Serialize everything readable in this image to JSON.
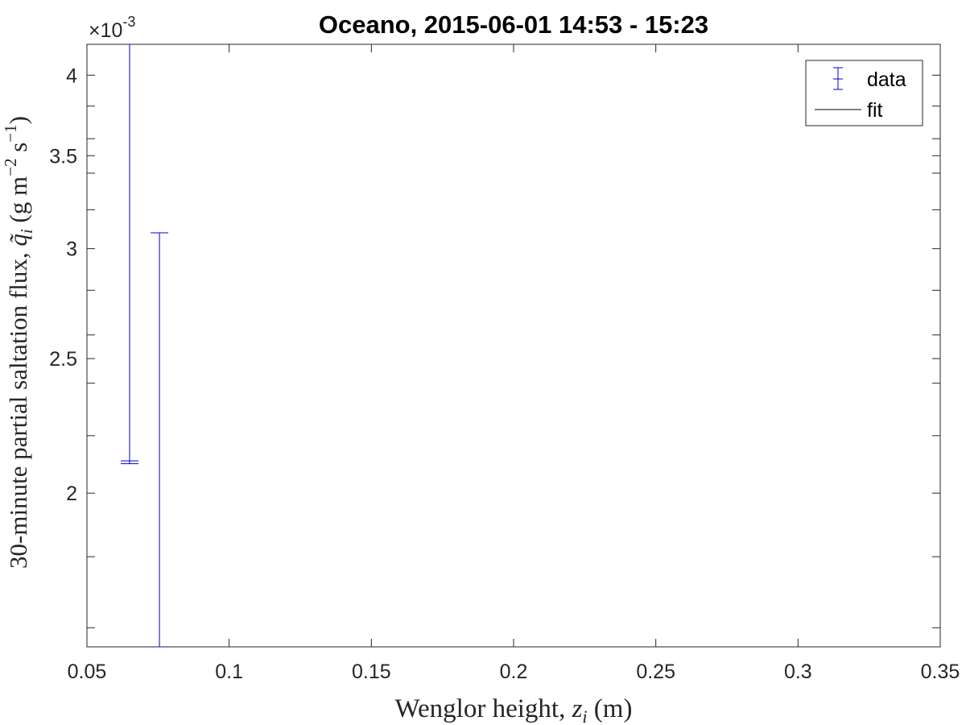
{
  "chart_data": {
    "type": "scatter",
    "title": "Oceano, 2015-06-01 14:53 - 15:23",
    "xlabel": {
      "prefix": "Wenglor height, ",
      "var": "z",
      "sub": "i",
      "suffix": " (m)"
    },
    "ylabel": {
      "prefix": "30-minute partial saltation flux, ",
      "var": "q̃",
      "sub": "i",
      "units_open": " (g m",
      "exp1": "−2",
      "units_mid": " s",
      "exp2": "−1",
      "units_close": ")"
    },
    "y_multiplier": {
      "base": "×10",
      "exp": "-3"
    },
    "xlim": [
      0.05,
      0.35
    ],
    "ylim": [
      0.00155,
      0.00421
    ],
    "y_scale": "log",
    "grid": false,
    "x_ticks": [
      {
        "v": 0.05,
        "label": "0.05"
      },
      {
        "v": 0.1,
        "label": "0.1"
      },
      {
        "v": 0.15,
        "label": "0.15"
      },
      {
        "v": 0.2,
        "label": "0.2"
      },
      {
        "v": 0.25,
        "label": "0.25"
      },
      {
        "v": 0.3,
        "label": "0.3"
      },
      {
        "v": 0.35,
        "label": "0.35"
      }
    ],
    "y_ticks": [
      {
        "v": 0.0016,
        "label": ""
      },
      {
        "v": 0.0018,
        "label": ""
      },
      {
        "v": 0.002,
        "label": "2"
      },
      {
        "v": 0.0022,
        "label": ""
      },
      {
        "v": 0.0024,
        "label": ""
      },
      {
        "v": 0.0025,
        "label": "2.5"
      },
      {
        "v": 0.0026,
        "label": ""
      },
      {
        "v": 0.0028,
        "label": ""
      },
      {
        "v": 0.003,
        "label": "3"
      },
      {
        "v": 0.0032,
        "label": ""
      },
      {
        "v": 0.0034,
        "label": ""
      },
      {
        "v": 0.0035,
        "label": "3.5"
      },
      {
        "v": 0.0036,
        "label": ""
      },
      {
        "v": 0.0038,
        "label": ""
      },
      {
        "v": 0.004,
        "label": "4"
      }
    ],
    "series": [
      {
        "name": "data",
        "color": "#0000cc",
        "points": [
          {
            "x": 0.065,
            "y": 0.00211,
            "lower": 0.0021,
            "upper": 0.0045
          },
          {
            "x": 0.0755,
            "y": 0.00155,
            "lower": 0.00155,
            "upper": 0.00308
          }
        ]
      },
      {
        "name": "fit",
        "color": "#000000",
        "points": []
      }
    ],
    "legend": {
      "position": "top-right",
      "entries": [
        {
          "label": "data",
          "kind": "errorbar",
          "color": "#0000cc"
        },
        {
          "label": "fit",
          "kind": "line",
          "color": "#000000"
        }
      ]
    }
  }
}
